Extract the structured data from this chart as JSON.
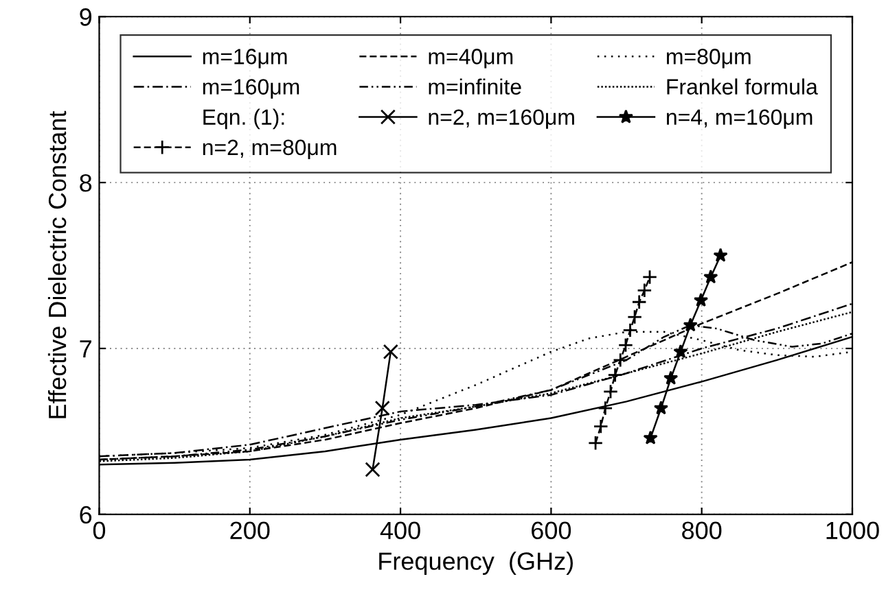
{
  "chart_data": {
    "type": "line",
    "xlabel": "Frequency  (GHz)",
    "ylabel": "Effective Dielectric Constant",
    "xlim": [
      0,
      1000
    ],
    "ylim": [
      6,
      9
    ],
    "xticks": [
      0,
      200,
      400,
      600,
      800,
      1000
    ],
    "yticks": [
      6,
      7,
      8,
      9
    ],
    "grid": true,
    "legend": "top",
    "marker": "none",
    "annotations": [
      "Eqn. (1):"
    ],
    "series": [
      {
        "name": "m=16μm",
        "color": "#000000",
        "line_style": "solid",
        "x": [
          0,
          100,
          200,
          300,
          400,
          500,
          600,
          700,
          800,
          900,
          1000
        ],
        "values": [
          6.3,
          6.31,
          6.33,
          6.38,
          6.45,
          6.51,
          6.58,
          6.68,
          6.8,
          6.93,
          7.07
        ]
      },
      {
        "name": "m=40μm",
        "color": "#000000",
        "line_style": "dashed",
        "x": [
          0,
          100,
          200,
          300,
          400,
          500,
          600,
          700,
          800,
          900,
          1000
        ],
        "values": [
          6.33,
          6.35,
          6.38,
          6.45,
          6.55,
          6.64,
          6.75,
          6.95,
          7.15,
          7.33,
          7.52
        ]
      },
      {
        "name": "m=80μm",
        "color": "#000000",
        "line_style": "dotted",
        "x": [
          0,
          100,
          200,
          300,
          400,
          500,
          600,
          650,
          700,
          750,
          800,
          850,
          900,
          950,
          1000
        ],
        "values": [
          6.35,
          6.37,
          6.4,
          6.48,
          6.6,
          6.78,
          6.98,
          7.06,
          7.1,
          7.1,
          7.05,
          6.99,
          6.96,
          6.95,
          6.98
        ]
      },
      {
        "name": "m=160μm",
        "color": "#000000",
        "line_style": "dashdot",
        "x": [
          0,
          100,
          200,
          300,
          400,
          500,
          600,
          700,
          800,
          900,
          1000
        ],
        "values": [
          6.35,
          6.37,
          6.42,
          6.52,
          6.62,
          6.66,
          6.72,
          6.85,
          7.0,
          7.12,
          7.27
        ]
      },
      {
        "name": "m=infinite",
        "color": "#000000",
        "line_style": "dashdotdot",
        "x": [
          0,
          100,
          200,
          300,
          400,
          500,
          600,
          700,
          750,
          785,
          820,
          870,
          920,
          960,
          1000
        ],
        "values": [
          6.33,
          6.35,
          6.39,
          6.47,
          6.57,
          6.65,
          6.75,
          6.93,
          7.07,
          7.14,
          7.12,
          7.05,
          7.01,
          7.03,
          7.09
        ]
      },
      {
        "name": "Frankel formula",
        "color": "#000000",
        "line_style": "densedot",
        "x": [
          0,
          100,
          200,
          300,
          400,
          500,
          600,
          700,
          800,
          900,
          1000
        ],
        "values": [
          6.32,
          6.34,
          6.38,
          6.47,
          6.58,
          6.65,
          6.73,
          6.85,
          6.97,
          7.1,
          7.22
        ]
      },
      {
        "name": "n=2, m=160μm",
        "color": "#000000",
        "line_style": "solid",
        "marker": "cross",
        "x": [
          363,
          376,
          387
        ],
        "values": [
          6.27,
          6.64,
          6.98
        ]
      },
      {
        "name": "n=4, m=160μm",
        "color": "#000000",
        "line_style": "solid",
        "marker": "star",
        "x": [
          732,
          746,
          759,
          772,
          785,
          799,
          812,
          825
        ],
        "values": [
          6.46,
          6.64,
          6.82,
          6.98,
          7.14,
          7.29,
          7.43,
          7.56
        ]
      },
      {
        "name": "n=2, m=80μm",
        "color": "#000000",
        "line_style": "dashed",
        "marker": "plus",
        "x": [
          659,
          666,
          672,
          679,
          685,
          692,
          699,
          705,
          711,
          717,
          724,
          731
        ],
        "values": [
          6.43,
          6.53,
          6.64,
          6.74,
          6.84,
          6.93,
          7.02,
          7.11,
          7.19,
          7.28,
          7.35,
          7.43
        ]
      }
    ]
  }
}
